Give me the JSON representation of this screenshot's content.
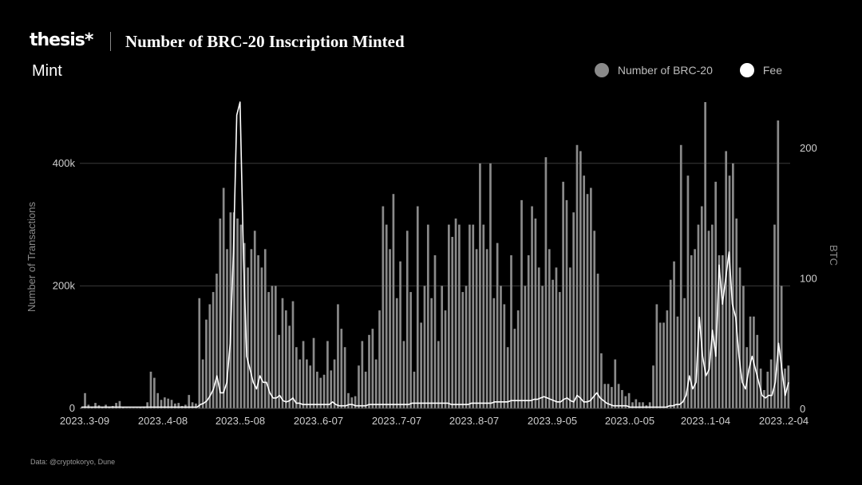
{
  "header": {
    "brand": "thesis*",
    "title": "Number of BRC-20 Inscription Minted",
    "subtitle": "Mint"
  },
  "source": "Data: @cryptokoryo, Dune",
  "colors": {
    "bars": "#8a8a8a",
    "fee_line": "#ffffff",
    "background": "#000000",
    "grid": "#3a3a3a"
  },
  "chart_data": {
    "type": "bar",
    "title": "Number of BRC-20 Inscription Minted",
    "subtitle": "Mint",
    "legend": {
      "position": "top-right"
    },
    "grid": true,
    "x_tick_labels": [
      "2023..3-09",
      "2023..4-08",
      "2023..5-08",
      "2023..6-07",
      "2023..7-07",
      "2023..8-07",
      "2023..9-05",
      "2023..0-05",
      "2023..1-04",
      "2023..2-04"
    ],
    "ylabel_left": "Number of Transactions",
    "ylabel_right": "BTC",
    "yticks_left": [
      "0",
      "200k",
      "400k"
    ],
    "yticks_right": [
      "0",
      "100",
      "200"
    ],
    "ylim_left": [
      0,
      500000
    ],
    "ylim_right": [
      0,
      235
    ],
    "series": [
      {
        "name": "Number of BRC-20",
        "kind": "bar",
        "axis": "left",
        "values": [
          2000,
          25000,
          6000,
          3000,
          9000,
          5000,
          2000,
          6000,
          3000,
          4000,
          9000,
          12000,
          2000,
          1000,
          1000,
          1000,
          1000,
          2000,
          3000,
          10000,
          60000,
          50000,
          25000,
          14000,
          18000,
          16000,
          14000,
          8000,
          9000,
          4000,
          6000,
          22000,
          10000,
          8000,
          180000,
          80000,
          145000,
          170000,
          190000,
          220000,
          310000,
          360000,
          260000,
          320000,
          320000,
          310000,
          300000,
          270000,
          230000,
          260000,
          290000,
          250000,
          230000,
          260000,
          190000,
          200000,
          200000,
          120000,
          180000,
          160000,
          135000,
          175000,
          100000,
          80000,
          110000,
          80000,
          70000,
          115000,
          60000,
          50000,
          55000,
          110000,
          62000,
          80000,
          170000,
          130000,
          100000,
          25000,
          18000,
          20000,
          70000,
          110000,
          60000,
          120000,
          130000,
          80000,
          160000,
          330000,
          300000,
          260000,
          350000,
          180000,
          240000,
          110000,
          290000,
          190000,
          60000,
          330000,
          140000,
          200000,
          300000,
          180000,
          250000,
          110000,
          200000,
          160000,
          300000,
          280000,
          310000,
          300000,
          190000,
          200000,
          300000,
          300000,
          260000,
          400000,
          300000,
          260000,
          400000,
          180000,
          270000,
          200000,
          170000,
          100000,
          250000,
          130000,
          160000,
          340000,
          200000,
          250000,
          330000,
          310000,
          230000,
          200000,
          410000,
          260000,
          210000,
          230000,
          190000,
          370000,
          340000,
          230000,
          320000,
          430000,
          420000,
          380000,
          350000,
          360000,
          290000,
          220000,
          90000,
          40000,
          40000,
          35000,
          80000,
          40000,
          30000,
          20000,
          25000,
          10000,
          15000,
          10000,
          10000,
          5000,
          10000,
          70000,
          170000,
          140000,
          140000,
          160000,
          210000,
          240000,
          150000,
          430000,
          180000,
          380000,
          250000,
          260000,
          300000,
          330000,
          500000,
          290000,
          300000,
          370000,
          250000,
          250000,
          420000,
          380000,
          400000,
          310000,
          230000,
          200000,
          100000,
          150000,
          150000,
          120000,
          65000,
          30000,
          60000,
          80000,
          300000,
          470000,
          200000,
          65000,
          70000
        ]
      },
      {
        "name": "Fee",
        "kind": "line",
        "axis": "right",
        "values": [
          1,
          1,
          1,
          1,
          1,
          1,
          1,
          1,
          1,
          1,
          1,
          1,
          1,
          1,
          1,
          1,
          1,
          1,
          1,
          1,
          1,
          1,
          1,
          1,
          1,
          1,
          1,
          1,
          1,
          1,
          1,
          1,
          1,
          1,
          1,
          1,
          3,
          4,
          6,
          10,
          15,
          25,
          12,
          12,
          20,
          50,
          120,
          225,
          235,
          120,
          40,
          30,
          20,
          15,
          25,
          20,
          20,
          12,
          8,
          8,
          10,
          6,
          5,
          6,
          8,
          4,
          4,
          3,
          3,
          3,
          3,
          3,
          3,
          3,
          3,
          3,
          5,
          3,
          2,
          2,
          2,
          3,
          3,
          2,
          2,
          2,
          2,
          3,
          3,
          3,
          3,
          3,
          3,
          3,
          3,
          3,
          3,
          3,
          3,
          3,
          4,
          4,
          4,
          4,
          4,
          4,
          4,
          4,
          4,
          4,
          4,
          4,
          3,
          3,
          3,
          3,
          3,
          3,
          4,
          4,
          4,
          4,
          4,
          4,
          4,
          5,
          5,
          5,
          5,
          5,
          6,
          6,
          6,
          6,
          6,
          6,
          6,
          7,
          7,
          8,
          9,
          8,
          7,
          6,
          5,
          5,
          7,
          8,
          6,
          5,
          10,
          8,
          5,
          5,
          6,
          9,
          12,
          8,
          6,
          4,
          3,
          2,
          2,
          2,
          2,
          2,
          1,
          1,
          1,
          1,
          1,
          1,
          1,
          1,
          1,
          1,
          1,
          1,
          2,
          2,
          3,
          3,
          5,
          10,
          25,
          15,
          20,
          70,
          40,
          25,
          30,
          60,
          40,
          110,
          80,
          100,
          120,
          80,
          70,
          40,
          20,
          15,
          30,
          40,
          30,
          20,
          10,
          8,
          10,
          10,
          20,
          50,
          30,
          10,
          20
        ]
      }
    ]
  }
}
